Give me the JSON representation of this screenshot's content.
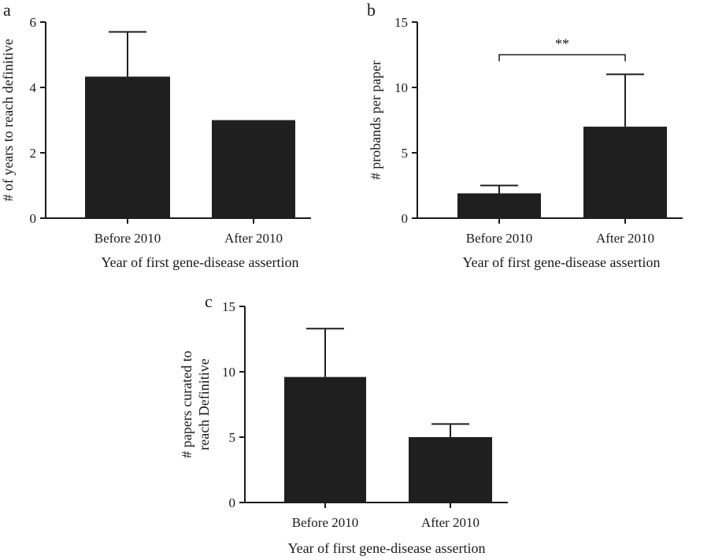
{
  "colors": {
    "bar": "#1f1f1f",
    "axis": "#1a1a1a"
  },
  "chart_data": [
    {
      "panel": "a",
      "type": "bar",
      "categories": [
        "Before 2010",
        "After 2010"
      ],
      "values": [
        4.33,
        3.0
      ],
      "error_upper": [
        5.7,
        3.0
      ],
      "xlabel": "Year of first gene-disease assertion",
      "ylabel": "# of years to reach definitive",
      "ylim": [
        0,
        6
      ],
      "yticks": [
        "0",
        "2",
        "4",
        "6"
      ],
      "grid": false,
      "significance": null
    },
    {
      "panel": "b",
      "type": "bar",
      "categories": [
        "Before 2010",
        "After 2010"
      ],
      "values": [
        1.9,
        7.0
      ],
      "error_upper": [
        2.5,
        11.0
      ],
      "xlabel": "Year of first gene-disease assertion",
      "ylabel": "# probands per paper",
      "ylim": [
        0,
        15
      ],
      "yticks": [
        "0",
        "5",
        "10",
        "15"
      ],
      "grid": false,
      "significance": {
        "label": "**",
        "y": 12.5,
        "drop_to": 12.0
      }
    },
    {
      "panel": "c",
      "type": "bar",
      "categories": [
        "Before 2010",
        "After 2010"
      ],
      "values": [
        9.6,
        5.0
      ],
      "error_upper": [
        13.3,
        6.0
      ],
      "xlabel": "Year of first gene-disease assertion",
      "ylabel": [
        "# papers curated to",
        "reach Definitive"
      ],
      "ylim": [
        0,
        15
      ],
      "yticks": [
        "0",
        "5",
        "10",
        "15"
      ],
      "grid": false,
      "significance": null
    }
  ]
}
